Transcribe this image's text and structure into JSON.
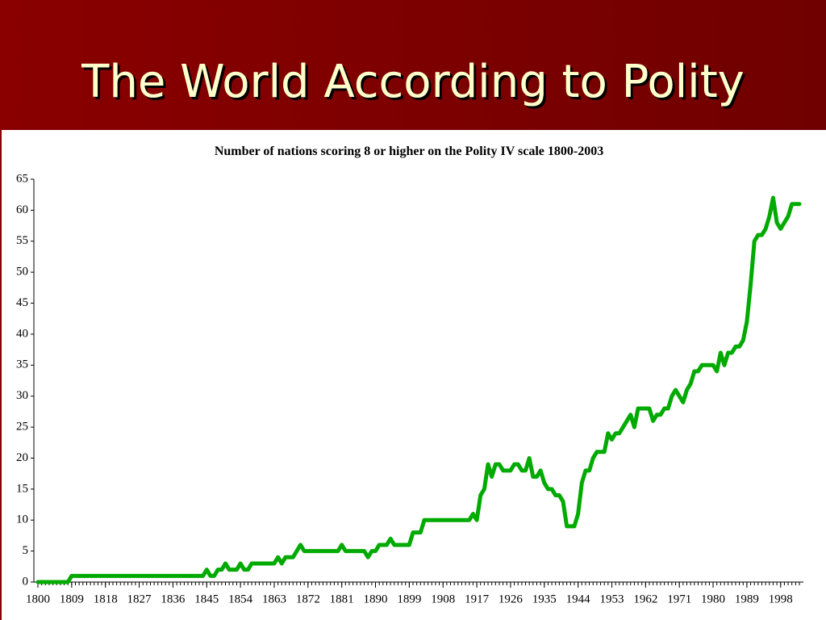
{
  "slide_title": "The World According to Polity",
  "chart_data": {
    "type": "line",
    "title": "Number of nations scoring 8 or higher on the Polity IV scale 1800-2003",
    "color": "#00aa00",
    "x": [
      1800,
      1801,
      1802,
      1803,
      1804,
      1805,
      1806,
      1807,
      1808,
      1809,
      1810,
      1811,
      1812,
      1813,
      1814,
      1815,
      1816,
      1817,
      1818,
      1819,
      1820,
      1821,
      1822,
      1823,
      1824,
      1825,
      1826,
      1827,
      1828,
      1829,
      1830,
      1831,
      1832,
      1833,
      1834,
      1835,
      1836,
      1837,
      1838,
      1839,
      1840,
      1841,
      1842,
      1843,
      1844,
      1845,
      1846,
      1847,
      1848,
      1849,
      1850,
      1851,
      1852,
      1853,
      1854,
      1855,
      1856,
      1857,
      1858,
      1859,
      1860,
      1861,
      1862,
      1863,
      1864,
      1865,
      1866,
      1867,
      1868,
      1869,
      1870,
      1871,
      1872,
      1873,
      1874,
      1875,
      1876,
      1877,
      1878,
      1879,
      1880,
      1881,
      1882,
      1883,
      1884,
      1885,
      1886,
      1887,
      1888,
      1889,
      1890,
      1891,
      1892,
      1893,
      1894,
      1895,
      1896,
      1897,
      1898,
      1899,
      1900,
      1901,
      1902,
      1903,
      1904,
      1905,
      1906,
      1907,
      1908,
      1909,
      1910,
      1911,
      1912,
      1913,
      1914,
      1915,
      1916,
      1917,
      1918,
      1919,
      1920,
      1921,
      1922,
      1923,
      1924,
      1925,
      1926,
      1927,
      1928,
      1929,
      1930,
      1931,
      1932,
      1933,
      1934,
      1935,
      1936,
      1937,
      1938,
      1939,
      1940,
      1941,
      1942,
      1943,
      1944,
      1945,
      1946,
      1947,
      1948,
      1949,
      1950,
      1951,
      1952,
      1953,
      1954,
      1955,
      1956,
      1957,
      1958,
      1959,
      1960,
      1961,
      1962,
      1963,
      1964,
      1965,
      1966,
      1967,
      1968,
      1969,
      1970,
      1971,
      1972,
      1973,
      1974,
      1975,
      1976,
      1977,
      1978,
      1979,
      1980,
      1981,
      1982,
      1983,
      1984,
      1985,
      1986,
      1987,
      1988,
      1989,
      1990,
      1991,
      1992,
      1993,
      1994,
      1995,
      1996,
      1997,
      1998,
      1999,
      2000,
      2001,
      2002,
      2003
    ],
    "values": [
      0,
      0,
      0,
      0,
      0,
      0,
      0,
      0,
      0,
      1,
      1,
      1,
      1,
      1,
      1,
      1,
      1,
      1,
      1,
      1,
      1,
      1,
      1,
      1,
      1,
      1,
      1,
      1,
      1,
      1,
      1,
      1,
      1,
      1,
      1,
      1,
      1,
      1,
      1,
      1,
      1,
      1,
      1,
      1,
      1,
      2,
      1,
      1,
      2,
      2,
      3,
      2,
      2,
      2,
      3,
      2,
      2,
      3,
      3,
      3,
      3,
      3,
      3,
      3,
      4,
      3,
      4,
      4,
      4,
      5,
      6,
      5,
      5,
      5,
      5,
      5,
      5,
      5,
      5,
      5,
      5,
      6,
      5,
      5,
      5,
      5,
      5,
      5,
      4,
      5,
      5,
      6,
      6,
      6,
      7,
      6,
      6,
      6,
      6,
      6,
      8,
      8,
      8,
      10,
      10,
      10,
      10,
      10,
      10,
      10,
      10,
      10,
      10,
      10,
      10,
      10,
      11,
      10,
      14,
      15,
      19,
      17,
      19,
      19,
      18,
      18,
      18,
      19,
      19,
      18,
      18,
      20,
      17,
      17,
      18,
      16,
      15,
      15,
      14,
      14,
      13,
      9,
      9,
      9,
      11,
      16,
      18,
      18,
      20,
      21,
      21,
      21,
      24,
      23,
      24,
      24,
      25,
      26,
      27,
      25,
      28,
      28,
      28,
      28,
      26,
      27,
      27,
      28,
      28,
      30,
      31,
      30,
      29,
      31,
      32,
      34,
      34,
      35,
      35,
      35,
      35,
      34,
      37,
      35,
      37,
      37,
      38,
      38,
      39,
      42,
      48,
      55,
      56,
      56,
      57,
      59,
      62,
      58,
      57,
      58,
      59,
      61,
      61,
      61
    ],
    "xlim": [
      1800,
      2003
    ],
    "xticks": [
      1800,
      1809,
      1818,
      1827,
      1836,
      1845,
      1854,
      1863,
      1872,
      1881,
      1890,
      1899,
      1908,
      1917,
      1926,
      1935,
      1944,
      1953,
      1962,
      1971,
      1980,
      1989,
      1998
    ],
    "ylim": [
      0,
      65
    ],
    "yticks": [
      0,
      5,
      10,
      15,
      20,
      25,
      30,
      35,
      40,
      45,
      50,
      55,
      60,
      65
    ]
  }
}
